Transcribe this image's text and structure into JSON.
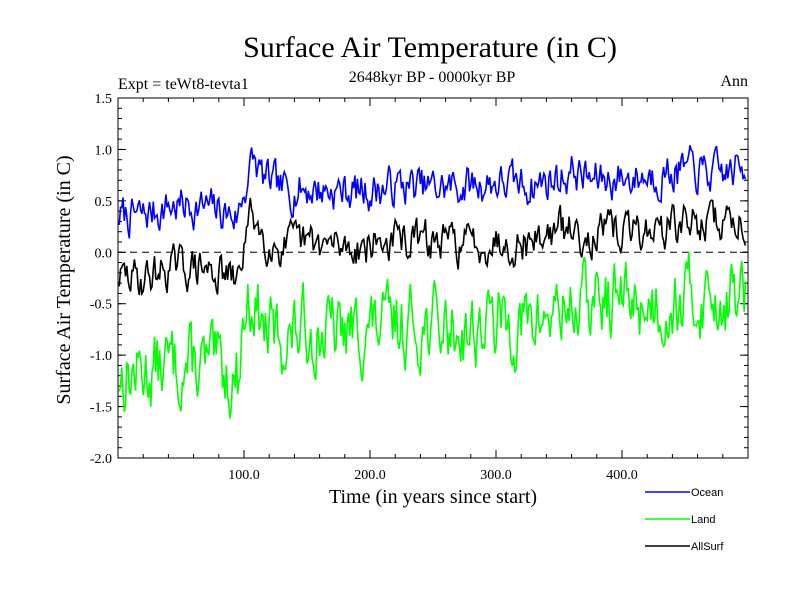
{
  "chart_data": {
    "type": "line",
    "title": "Surface Air Temperature (in C)",
    "experiment_label": "Expt = teWt8-tevta1",
    "period_label": "2648kyr BP - 0000kyr BP",
    "season_label": "Ann",
    "xlabel": "Time (in years since start)",
    "ylabel": "Surface Air Temperature (in C)",
    "xlim": [
      0,
      500
    ],
    "ylim": [
      -2.0,
      1.5
    ],
    "x_ticks": [
      100,
      200,
      300,
      400
    ],
    "x_tick_labels": [
      "100.0",
      "200.0",
      "300.0",
      "400.0"
    ],
    "y_ticks": [
      -2.0,
      -1.5,
      -1.0,
      -0.5,
      0.0,
      0.5,
      1.0,
      1.5
    ],
    "y_tick_labels": [
      "-2.0",
      "-1.5",
      "-1.0",
      "-0.5",
      "0.0",
      "0.5",
      "1.0",
      "1.5"
    ],
    "reference_line": 0.0,
    "legend_position": "bottom-right, outside plot",
    "series": [
      {
        "name": "Ocean",
        "color": "#0000ff",
        "x": [
          0,
          20,
          40,
          60,
          80,
          95,
          100,
          107,
          115,
          130,
          150,
          175,
          200,
          225,
          250,
          275,
          300,
          325,
          350,
          362,
          375,
          400,
          425,
          450,
          475,
          500
        ],
        "values": [
          0.35,
          0.35,
          0.45,
          0.45,
          0.4,
          0.35,
          0.6,
          0.9,
          0.72,
          0.6,
          0.62,
          0.6,
          0.6,
          0.65,
          0.62,
          0.65,
          0.68,
          0.65,
          0.72,
          0.8,
          0.7,
          0.72,
          0.75,
          0.8,
          0.75,
          0.82
        ]
      },
      {
        "name": "Land",
        "color": "#00ff00",
        "x": [
          0,
          20,
          40,
          60,
          80,
          95,
          100,
          107,
          115,
          130,
          150,
          175,
          200,
          225,
          250,
          275,
          300,
          325,
          350,
          375,
          400,
          425,
          450,
          475,
          500
        ],
        "values": [
          -1.2,
          -1.15,
          -1.1,
          -1.1,
          -1.15,
          -1.2,
          -0.6,
          -0.4,
          -0.75,
          -0.85,
          -0.75,
          -0.8,
          -0.75,
          -0.7,
          -0.72,
          -0.75,
          -0.7,
          -0.72,
          -0.55,
          -0.5,
          -0.45,
          -0.5,
          -0.45,
          -0.45,
          -0.4
        ]
      },
      {
        "name": "AllSurf",
        "color": "#000000",
        "x": [
          0,
          20,
          40,
          60,
          80,
          95,
          100,
          107,
          115,
          130,
          150,
          175,
          200,
          225,
          250,
          275,
          300,
          325,
          350,
          375,
          400,
          425,
          450,
          475,
          500
        ],
        "values": [
          -0.25,
          -0.25,
          -0.15,
          -0.15,
          -0.2,
          -0.3,
          0.1,
          0.4,
          0.15,
          0.05,
          0.08,
          0.05,
          0.08,
          0.12,
          0.1,
          0.08,
          0.12,
          0.1,
          0.22,
          0.18,
          0.2,
          0.22,
          0.28,
          0.3,
          0.32
        ]
      }
    ]
  }
}
